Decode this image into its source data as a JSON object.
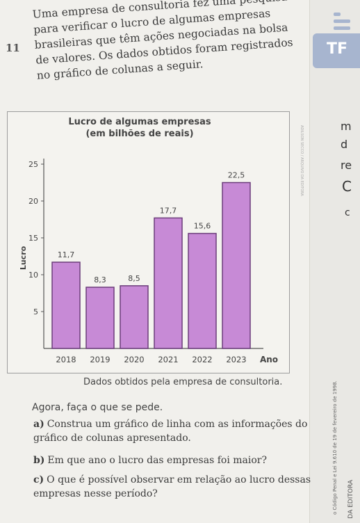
{
  "question": {
    "number": "11",
    "text": "Uma empresa de consultoria fez uma pesquisa para verificar o lucro de algumas empresas brasileiras que têm ações negociadas na bolsa de valores. Os dados obtidos foram registrados no gráfico de colunas a seguir."
  },
  "chart_data": {
    "type": "bar",
    "title": "Lucro de algumas empresas",
    "subtitle": "(em bilhões de reais)",
    "ylabel": "Lucro",
    "xlabel": "Ano",
    "categories": [
      "2018",
      "2019",
      "2020",
      "2021",
      "2022",
      "2023"
    ],
    "values": [
      11.7,
      8.3,
      8.5,
      17.7,
      15.6,
      22.5
    ],
    "value_labels": [
      "11,7",
      "8,3",
      "8,5",
      "17,7",
      "15,6",
      "22,5"
    ],
    "y_ticks": [
      5,
      10,
      15,
      20,
      25
    ],
    "ylim": [
      0,
      25
    ],
    "bar_color": "#c78ad6",
    "bar_border": "#6b3c7a",
    "grid": false
  },
  "source": "Dados obtidos pela empresa de consultoria.",
  "intro": "Agora, faça o que se pede.",
  "items": [
    {
      "label": "a)",
      "text": "Construa um gráfico de linha com as informações do gráfico de colunas apresentado."
    },
    {
      "label": "b)",
      "text": "Em que ano o lucro das empresas foi maior?"
    },
    {
      "label": "c)",
      "text": "O que é possível observar em relação ao lucro dessas empresas nesse período?"
    }
  ],
  "margin": {
    "tab_text": "TF",
    "edge_letters": [
      "m",
      "d",
      "re",
      "C",
      "c"
    ],
    "law_note": "o Código Penal e Lei 9.610 de 19 de fevereiro de 1998.",
    "editora": "DA EDITORA"
  }
}
